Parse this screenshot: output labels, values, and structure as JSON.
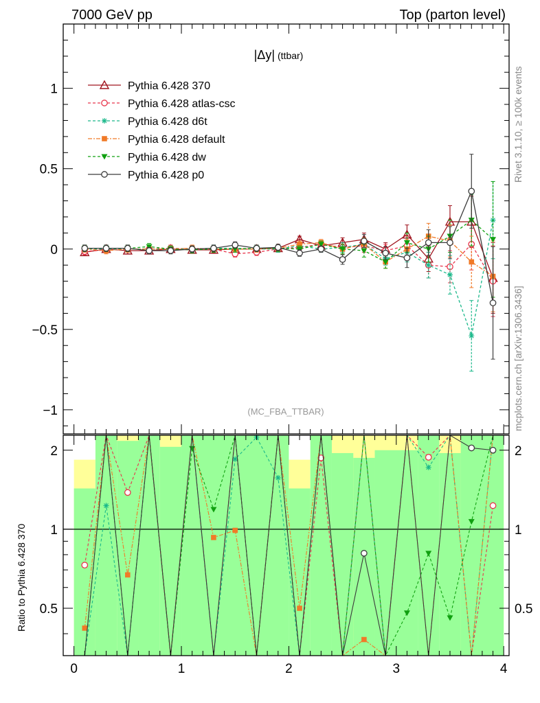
{
  "header": {
    "left_label": "7000 GeV pp",
    "right_label": "Top (parton level)"
  },
  "side_labels": {
    "rivet": "Rivet 3.1.10, ≥ 100k events",
    "mcplots": "mcplots.cern.ch [arXiv:1306.3436]"
  },
  "chart_data": {
    "type": "line",
    "title": "|Δy|",
    "title_sub": "(ttbar)",
    "watermark": "(MC_FBA_TTBAR)",
    "xlim": [
      -0.1,
      4.05
    ],
    "ylim": [
      -1.15,
      1.4
    ],
    "ratio_ylim": [
      0.33,
      2.28
    ],
    "xticks": [
      0,
      1,
      2,
      3,
      4
    ],
    "yticks": [
      -1,
      -0.5,
      0,
      0.5,
      1
    ],
    "yticklabels": [
      "−1",
      "−0.5",
      "0",
      "0.5",
      "1"
    ],
    "ratio_yticks": [
      0.5,
      1,
      2
    ],
    "ratio_ylabel": "Ratio to Pythia 6.428 370",
    "x": [
      0.1,
      0.3,
      0.5,
      0.7,
      0.9,
      1.1,
      1.3,
      1.5,
      1.7,
      1.9,
      2.1,
      2.3,
      2.5,
      2.7,
      2.9,
      3.1,
      3.3,
      3.5,
      3.7,
      3.9
    ],
    "series": [
      {
        "name": "Pythia 6.428 370",
        "color": "#a0141e",
        "marker": "triangle-open",
        "dash": "solid",
        "values": [
          -0.02,
          0.0,
          -0.01,
          -0.01,
          0.0,
          -0.005,
          -0.005,
          0.0,
          0.0,
          0.005,
          0.06,
          0.02,
          0.04,
          0.06,
          0.0,
          0.09,
          -0.06,
          0.17,
          0.17,
          -0.18
        ],
        "errors": [
          0.02,
          0.02,
          0.02,
          0.02,
          0.02,
          0.02,
          0.02,
          0.02,
          0.02,
          0.02,
          0.02,
          0.02,
          0.03,
          0.04,
          0.04,
          0.06,
          0.08,
          0.1,
          0.16,
          0.22
        ]
      },
      {
        "name": "Pythia 6.428 atlas-csc",
        "color": "#e8344a",
        "marker": "circle-open",
        "dash": "4,3",
        "values": [
          -0.015,
          -0.005,
          0.0,
          0.0,
          0.005,
          0.0,
          0.0,
          -0.03,
          -0.02,
          0.0,
          0.01,
          0.03,
          0.01,
          0.02,
          -0.01,
          0.02,
          -0.1,
          -0.11,
          0.03,
          -0.2
        ],
        "errors": [
          0.02,
          0.02,
          0.02,
          0.02,
          0.02,
          0.02,
          0.02,
          0.02,
          0.02,
          0.02,
          0.02,
          0.02,
          0.03,
          0.04,
          0.04,
          0.06,
          0.08,
          0.1,
          0.16,
          0.22
        ]
      },
      {
        "name": "Pythia 6.428 d6t",
        "color": "#1ab88a",
        "marker": "star",
        "dash": "4,3",
        "values": [
          0.0,
          0.0,
          0.0,
          0.0,
          0.0,
          0.0,
          0.005,
          0.005,
          0.0,
          0.0,
          0.02,
          0.0,
          0.01,
          0.03,
          -0.06,
          -0.02,
          -0.1,
          -0.16,
          -0.54,
          0.18
        ],
        "errors": [
          0.02,
          0.02,
          0.02,
          0.02,
          0.02,
          0.02,
          0.02,
          0.02,
          0.02,
          0.02,
          0.02,
          0.02,
          0.03,
          0.04,
          0.04,
          0.06,
          0.08,
          0.12,
          0.22,
          0.24
        ]
      },
      {
        "name": "Pythia 6.428 default",
        "color": "#f07a28",
        "marker": "square",
        "dash": "6,2,2,2",
        "values": [
          0.0,
          -0.01,
          0.0,
          0.0,
          0.0,
          0.005,
          0.0,
          0.0,
          0.0,
          0.005,
          0.03,
          0.04,
          0.0,
          0.03,
          -0.08,
          0.0,
          0.08,
          0.05,
          -0.08,
          -0.17
        ],
        "errors": [
          0.02,
          0.02,
          0.02,
          0.02,
          0.02,
          0.02,
          0.02,
          0.02,
          0.02,
          0.02,
          0.02,
          0.02,
          0.03,
          0.04,
          0.04,
          0.06,
          0.08,
          0.1,
          0.16,
          0.22
        ]
      },
      {
        "name": "Pythia 6.428 dw",
        "color": "#10a010",
        "marker": "triangle-down",
        "dash": "4,3",
        "values": [
          0.005,
          0.005,
          0.005,
          0.015,
          0.0,
          -0.005,
          0.0,
          0.0,
          0.005,
          0.005,
          0.0,
          0.03,
          0.0,
          -0.01,
          -0.08,
          0.04,
          0.0,
          0.08,
          0.18,
          0.06
        ],
        "errors": [
          0.02,
          0.02,
          0.02,
          0.02,
          0.02,
          0.02,
          0.02,
          0.02,
          0.02,
          0.02,
          0.02,
          0.02,
          0.03,
          0.04,
          0.04,
          0.06,
          0.08,
          0.1,
          0.16,
          0.36
        ]
      },
      {
        "name": "Pythia 6.428 p0",
        "color": "#3a3a3a",
        "marker": "circle-open",
        "dash": "solid",
        "values": [
          0.005,
          0.005,
          0.005,
          -0.01,
          -0.01,
          0.0,
          0.005,
          0.025,
          0.005,
          0.01,
          -0.025,
          0.0,
          -0.065,
          0.05,
          -0.025,
          -0.055,
          0.04,
          0.04,
          0.36,
          -0.335
        ],
        "errors": [
          0.02,
          0.02,
          0.02,
          0.02,
          0.02,
          0.02,
          0.02,
          0.02,
          0.02,
          0.02,
          0.02,
          0.02,
          0.03,
          0.04,
          0.04,
          0.06,
          0.08,
          0.1,
          0.23,
          0.35
        ]
      }
    ],
    "ratio_series": [
      {
        "name": "Pythia 6.428 atlas-csc",
        "values": [
          0.73,
          null,
          1.38,
          null,
          null,
          null,
          null,
          null,
          null,
          null,
          null,
          1.87,
          null,
          null,
          null,
          null,
          1.88,
          null,
          null,
          1.23
        ]
      },
      {
        "name": "Pythia 6.428 d6t",
        "values": [
          null,
          1.23,
          null,
          null,
          null,
          null,
          null,
          1.85,
          2.24,
          1.57,
          null,
          null,
          null,
          null,
          null,
          null,
          1.72,
          null,
          null,
          null
        ]
      },
      {
        "name": "Pythia 6.428 default",
        "values": [
          0.42,
          null,
          0.67,
          null,
          null,
          null,
          0.93,
          0.99,
          null,
          null,
          0.5,
          null,
          null,
          0.38,
          null,
          null,
          null,
          null,
          null,
          null
        ]
      },
      {
        "name": "Pythia 6.428 dw",
        "values": [
          null,
          null,
          null,
          null,
          null,
          2.03,
          1.19,
          null,
          null,
          null,
          null,
          null,
          null,
          null,
          null,
          0.48,
          0.81,
          0.46,
          1.07,
          null
        ]
      },
      {
        "name": "Pythia 6.428 p0",
        "values": [
          null,
          null,
          null,
          null,
          null,
          null,
          null,
          null,
          null,
          null,
          null,
          null,
          null,
          0.81,
          null,
          null,
          null,
          null,
          2.04,
          2.0
        ]
      }
    ],
    "ratio_band_inner": [
      [
        0.0,
        0.2,
        0.33,
        1.43
      ],
      [
        0.2,
        0.4,
        0.33,
        2.28
      ],
      [
        0.4,
        0.6,
        0.33,
        2.17
      ],
      [
        0.6,
        0.8,
        0.33,
        2.28
      ],
      [
        0.8,
        1.0,
        0.33,
        2.06
      ],
      [
        1.0,
        2.0,
        0.33,
        2.28
      ],
      [
        2.0,
        2.2,
        0.33,
        1.43
      ],
      [
        2.2,
        2.4,
        0.33,
        2.28
      ],
      [
        2.4,
        2.6,
        0.33,
        1.95
      ],
      [
        2.6,
        2.8,
        0.33,
        1.87
      ],
      [
        2.8,
        3.2,
        0.33,
        2.0
      ],
      [
        3.2,
        3.4,
        0.33,
        2.28
      ],
      [
        3.4,
        3.6,
        0.33,
        1.95
      ],
      [
        3.6,
        4.0,
        0.33,
        2.28
      ]
    ],
    "ratio_band_outer": [
      [
        0.0,
        0.2,
        0.33,
        1.84
      ],
      [
        0.4,
        0.6,
        0.33,
        2.28
      ],
      [
        0.8,
        1.0,
        0.33,
        2.28
      ],
      [
        2.0,
        2.2,
        0.33,
        1.84
      ],
      [
        2.4,
        3.2,
        0.33,
        2.28
      ],
      [
        3.4,
        3.6,
        0.33,
        2.28
      ],
      [
        3.6,
        4.0,
        0.33,
        2.28
      ]
    ]
  }
}
